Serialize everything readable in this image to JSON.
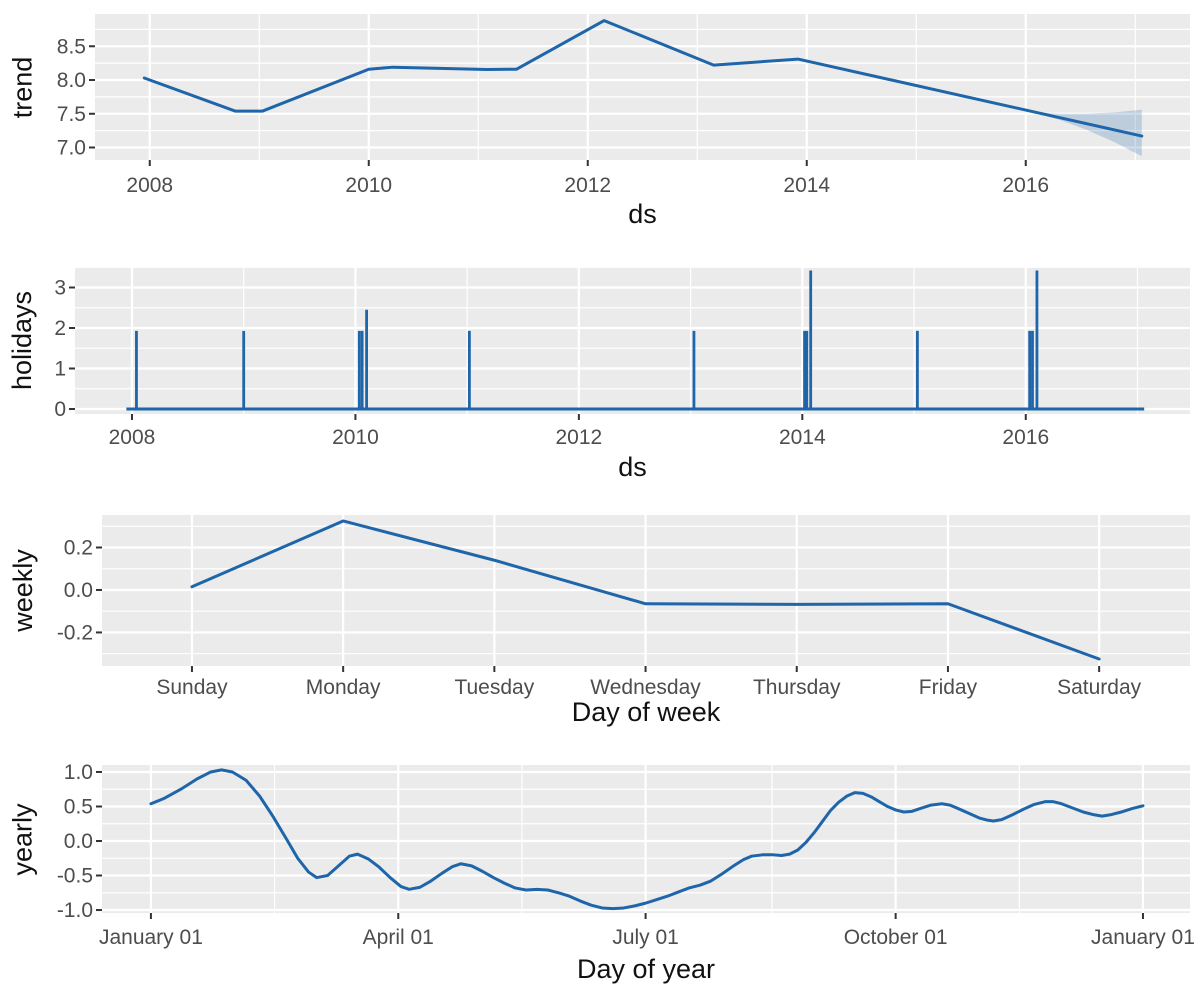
{
  "figure": {
    "background": "#ffffff",
    "panel_background": "#ebebeb",
    "grid_color": "#ffffff",
    "line_color": "#1f65a9",
    "ribbon_color": "#1f65a9",
    "ribbon_opacity": 0.22,
    "tick_label_color": "#4d4d4d",
    "tick_mark_color": "#333333",
    "axis_title_color": "#111111"
  },
  "chart_data": [
    {
      "id": "trend",
      "type": "line",
      "xlabel": "ds",
      "ylabel": "trend",
      "xlim": [
        2007.5,
        2017.5
      ],
      "ylim": [
        6.815,
        8.978
      ],
      "x_ticks": [
        {
          "v": 2008,
          "label": "2008"
        },
        {
          "v": 2010,
          "label": "2010"
        },
        {
          "v": 2012,
          "label": "2012"
        },
        {
          "v": 2014,
          "label": "2014"
        },
        {
          "v": 2016,
          "label": "2016"
        }
      ],
      "minor_x": [
        2009,
        2011,
        2013,
        2015,
        2017
      ],
      "y_ticks": [
        {
          "v": 7.0,
          "label": "7.0"
        },
        {
          "v": 7.5,
          "label": "7.5"
        },
        {
          "v": 8.0,
          "label": "8.0"
        },
        {
          "v": 8.5,
          "label": "8.5"
        }
      ],
      "minor_y": [
        7.25,
        7.75,
        8.25,
        8.75
      ],
      "series": {
        "x": [
          2007.95,
          2008.78,
          2009.03,
          2010.0,
          2010.22,
          2011.08,
          2011.35,
          2012.15,
          2013.15,
          2013.92,
          2017.06
        ],
        "y": [
          8.03,
          7.54,
          7.54,
          8.16,
          8.19,
          8.155,
          8.16,
          8.88,
          8.22,
          8.31,
          7.17
        ]
      },
      "ribbon": {
        "x": [
          2016.06,
          2016.31,
          2016.56,
          2016.81,
          2017.06
        ],
        "upper": [
          7.523,
          7.5,
          7.5,
          7.52,
          7.56
        ],
        "lower": [
          7.523,
          7.41,
          7.26,
          7.08,
          6.87
        ]
      }
    },
    {
      "id": "holidays",
      "type": "spikes",
      "xlabel": "ds",
      "ylabel": "holidays",
      "xlim": [
        2007.49,
        2017.47
      ],
      "ylim": [
        -0.123,
        3.506
      ],
      "x_ticks": [
        {
          "v": 2008,
          "label": "2008"
        },
        {
          "v": 2010,
          "label": "2010"
        },
        {
          "v": 2012,
          "label": "2012"
        },
        {
          "v": 2014,
          "label": "2014"
        },
        {
          "v": 2016,
          "label": "2016"
        }
      ],
      "minor_x": [
        2009,
        2011,
        2013,
        2015,
        2017
      ],
      "y_ticks": [
        {
          "v": 0,
          "label": "0"
        },
        {
          "v": 1,
          "label": "1"
        },
        {
          "v": 2,
          "label": "2"
        },
        {
          "v": 3,
          "label": "3"
        }
      ],
      "minor_y": [
        0.5,
        1.5,
        2.5,
        3.5
      ],
      "baseline": {
        "x_start": 2007.95,
        "x_end": 2017.06,
        "y": 0
      },
      "spikes": [
        {
          "x": 2008.04,
          "y": 1.93
        },
        {
          "x": 2009.0,
          "y": 1.93
        },
        {
          "x": 2010.035,
          "y": 1.93
        },
        {
          "x": 2010.06,
          "y": 1.93
        },
        {
          "x": 2010.1,
          "y": 2.45
        },
        {
          "x": 2011.02,
          "y": 1.93
        },
        {
          "x": 2013.03,
          "y": 1.93
        },
        {
          "x": 2014.02,
          "y": 1.93
        },
        {
          "x": 2014.04,
          "y": 1.93
        },
        {
          "x": 2014.075,
          "y": 3.42
        },
        {
          "x": 2015.03,
          "y": 1.93
        },
        {
          "x": 2016.035,
          "y": 1.93
        },
        {
          "x": 2016.06,
          "y": 1.93
        },
        {
          "x": 2016.1,
          "y": 3.42
        }
      ]
    },
    {
      "id": "weekly",
      "type": "line",
      "xlabel": "Day of week",
      "ylabel": "weekly",
      "xlim": [
        -0.595,
        6.601
      ],
      "ylim": [
        -0.358,
        0.353
      ],
      "x_ticks": [
        {
          "v": 0,
          "label": "Sunday"
        },
        {
          "v": 1,
          "label": "Monday"
        },
        {
          "v": 2,
          "label": "Tuesday"
        },
        {
          "v": 3,
          "label": "Wednesday"
        },
        {
          "v": 4,
          "label": "Thursday"
        },
        {
          "v": 5,
          "label": "Friday"
        },
        {
          "v": 6,
          "label": "Saturday"
        }
      ],
      "minor_x": [],
      "y_ticks": [
        {
          "v": -0.2,
          "label": "-0.2"
        },
        {
          "v": 0.0,
          "label": "0.0"
        },
        {
          "v": 0.2,
          "label": "0.2"
        }
      ],
      "minor_y": [
        -0.3,
        -0.1,
        0.1,
        0.3
      ],
      "series": {
        "x": [
          0,
          1,
          2,
          3,
          4,
          5,
          6
        ],
        "y": [
          0.015,
          0.325,
          0.14,
          -0.065,
          -0.068,
          -0.065,
          -0.325
        ]
      }
    },
    {
      "id": "yearly",
      "type": "line",
      "xlabel": "Day of year",
      "ylabel": "yearly",
      "xlim": [
        -17,
        383.3
      ],
      "ylim": [
        -1.043,
        1.101
      ],
      "x_ticks": [
        {
          "v": 1,
          "label": "January 01"
        },
        {
          "v": 92,
          "label": "April 01"
        },
        {
          "v": 183,
          "label": "July 01"
        },
        {
          "v": 275,
          "label": "October 01"
        },
        {
          "v": 366,
          "label": "January 01"
        }
      ],
      "minor_x": [
        46.5,
        137.5,
        229.5,
        320.5
      ],
      "y_ticks": [
        {
          "v": -1.0,
          "label": "-1.0"
        },
        {
          "v": -0.5,
          "label": "-0.5"
        },
        {
          "v": 0.0,
          "label": "0.0"
        },
        {
          "v": 0.5,
          "label": "0.5"
        },
        {
          "v": 1.0,
          "label": "1.0"
        }
      ],
      "minor_y": [
        -0.75,
        -0.25,
        0.25,
        0.75
      ],
      "series": {
        "x": [
          1,
          6,
          12,
          18,
          23,
          27,
          31,
          36,
          41,
          46,
          51,
          55,
          59,
          62,
          66,
          70,
          74,
          77,
          81,
          85,
          89,
          93,
          96,
          100,
          104,
          108,
          112,
          115,
          119,
          123,
          127,
          131,
          135,
          139,
          143,
          147,
          151,
          155,
          159,
          163,
          167,
          171,
          175,
          179,
          183,
          187,
          191,
          195,
          199,
          203,
          207,
          211,
          215,
          219,
          222,
          226,
          230,
          233,
          236,
          239,
          242,
          245,
          248,
          251,
          254,
          257,
          260,
          263,
          266,
          269,
          272,
          275,
          278,
          281,
          284,
          288,
          292,
          295,
          298,
          302,
          306,
          309,
          311,
          314,
          318,
          322,
          326,
          330,
          333,
          336,
          340,
          344,
          348,
          351,
          354,
          358,
          362,
          366
        ],
        "y": [
          0.54,
          0.62,
          0.75,
          0.9,
          1.0,
          1.03,
          1.0,
          0.88,
          0.65,
          0.35,
          0.02,
          -0.25,
          -0.45,
          -0.53,
          -0.5,
          -0.36,
          -0.22,
          -0.19,
          -0.26,
          -0.38,
          -0.53,
          -0.66,
          -0.7,
          -0.67,
          -0.58,
          -0.47,
          -0.37,
          -0.33,
          -0.36,
          -0.44,
          -0.53,
          -0.61,
          -0.68,
          -0.71,
          -0.7,
          -0.71,
          -0.75,
          -0.8,
          -0.87,
          -0.93,
          -0.97,
          -0.98,
          -0.97,
          -0.94,
          -0.9,
          -0.85,
          -0.8,
          -0.74,
          -0.68,
          -0.64,
          -0.58,
          -0.48,
          -0.37,
          -0.27,
          -0.22,
          -0.2,
          -0.2,
          -0.21,
          -0.19,
          -0.13,
          -0.02,
          0.12,
          0.28,
          0.44,
          0.56,
          0.65,
          0.7,
          0.69,
          0.64,
          0.57,
          0.5,
          0.45,
          0.42,
          0.43,
          0.47,
          0.52,
          0.54,
          0.52,
          0.47,
          0.4,
          0.33,
          0.3,
          0.29,
          0.31,
          0.38,
          0.46,
          0.53,
          0.57,
          0.57,
          0.54,
          0.48,
          0.42,
          0.38,
          0.36,
          0.38,
          0.42,
          0.47,
          0.51
        ]
      }
    }
  ]
}
